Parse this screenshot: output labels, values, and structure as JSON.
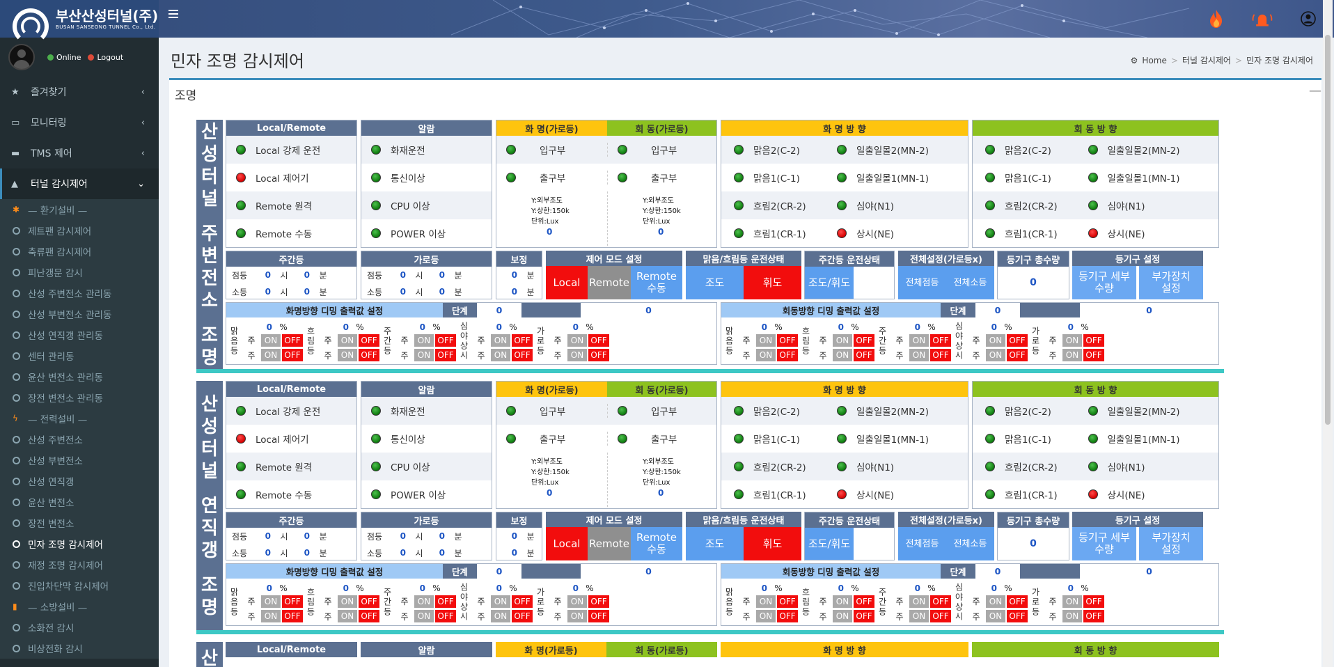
{
  "app": {
    "logo_title": "부산산성터널(주)",
    "logo_sub": "BUSAN SANSEONG TUNNEL Co., Ltd.",
    "online": "Online",
    "logout": "Logout"
  },
  "colors": {
    "online": "#4cae4c",
    "logout": "#dd4b39",
    "accent": "#3c8dbc"
  },
  "menu": [
    {
      "label": "즐겨찾기",
      "icon": "star-icon"
    },
    {
      "label": "모니터링",
      "icon": "monitor-icon"
    },
    {
      "label": "TMS 제어",
      "icon": "car-icon"
    },
    {
      "label": "터널 감시제어",
      "icon": "road-icon"
    }
  ],
  "submenu": [
    {
      "label": "— 환기설비 —",
      "type": "hdr",
      "icon": "fan-icon"
    },
    {
      "label": "제트팬 감시제어"
    },
    {
      "label": "축류팬 감시제어"
    },
    {
      "label": "피난갱문 감시"
    },
    {
      "label": "산성 주변전소 관리동"
    },
    {
      "label": "산성 부변전소 관리동"
    },
    {
      "label": "산성 연직갱 관리동"
    },
    {
      "label": "센터 관리동"
    },
    {
      "label": "윤산 변전소 관리동"
    },
    {
      "label": "장전 변전소 관리동"
    },
    {
      "label": "— 전력설비 —",
      "type": "hdr",
      "icon": "bolt-icon"
    },
    {
      "label": "산성 주변전소"
    },
    {
      "label": "산성 부변전소"
    },
    {
      "label": "산성 연직갱"
    },
    {
      "label": "윤산 변전소"
    },
    {
      "label": "장전 변전소"
    },
    {
      "label": "민자 조명 감시제어",
      "type": "cur"
    },
    {
      "label": "재정 조명 감시제어"
    },
    {
      "label": "진입차단막 감시제어"
    },
    {
      "label": "— 소방설비 —",
      "type": "hdr",
      "icon": "extinguisher-icon"
    },
    {
      "label": "소화전 감시"
    },
    {
      "label": "비상전화 감시"
    }
  ],
  "page": {
    "title": "민자 조명 감시제어",
    "box_title": "조명"
  },
  "breadcrumb": {
    "home": "Home",
    "mid": "터널 감시제어",
    "current": "민자 조명 감시제어"
  },
  "labels": {
    "local_remote": "Local/Remote",
    "alarm": "알람",
    "hwa_street": "화 명(가로등)",
    "hoe_street": "회 동(가로등)",
    "hwa_dir": "화 명 방 향",
    "hoe_dir": "회 동 방 향",
    "lr_items": [
      "Local 강제 운전",
      "Local 제어기",
      "Remote 원격",
      "Remote 수동"
    ],
    "alarm_items": [
      "화재운전",
      "통신이상",
      "CPU 이상",
      "POWER 이상"
    ],
    "entrance": "입구부",
    "exit": "출구부",
    "lux_lines": [
      "Y:외부조도",
      "Y:상한:150k",
      "단위:Lux"
    ],
    "dir_left": [
      "맑음2(C-2)",
      "맑음1(C-1)",
      "흐림2(CR-2)",
      "흐림1(CR-1)"
    ],
    "dir_right": [
      "일출일몰2(MN-2)",
      "일출일몰1(MN-1)",
      "심야(N1)",
      "상시(NE)"
    ],
    "daytime": "주간등",
    "street": "가로등",
    "corr": "보정",
    "on_time": "점등",
    "off_time": "소등",
    "hour": "시",
    "minute": "분",
    "ctrl_mode": "제어 모드 설정",
    "local_btn": "Local",
    "remote_btn": "Remote",
    "remote_manual_btn": "Remote 수동",
    "clear_cloud_state": "맑음/흐림등 운전상태",
    "jodo": "조도",
    "hwido": "휘도",
    "daytime_state": "주간등 운전상태",
    "jodo_hwido": "조도/휘도",
    "all_set": "전체설정(가로등x)",
    "all_on": "전체점등",
    "all_off": "전체소등",
    "fixture_total": "등기구 총수량",
    "fixture_set": "등기구 설정",
    "fixture_detail": "등기구 세부수량",
    "aux_set": "부가장치 설정",
    "hwa_dimming": "화명방향 디밍 출력값 설정",
    "hoe_dimming": "회동방향 디밍 출력값 설정",
    "step": "단계",
    "pct": "%",
    "day": "주",
    "night": "주",
    "on": "ON",
    "off": "OFF",
    "dim_groups": [
      "맑음등",
      "흐림등",
      "주간등",
      "심야상시",
      "가로등"
    ]
  },
  "panels": [
    {
      "title_top": "산성터널",
      "title_mid": "주변전소",
      "title_bot": "조명",
      "lr_status": [
        "green",
        "red",
        "green",
        "green"
      ],
      "alarm_status": [
        "green",
        "green",
        "green",
        "green"
      ],
      "hwa_lux": "0",
      "hoe_lux": "0",
      "dir_left_status": [
        "green",
        "green",
        "green",
        "green"
      ],
      "dir_right_status": [
        "green",
        "green",
        "green",
        "red"
      ],
      "day_on_h": "0",
      "day_on_m": "0",
      "day_off_h": "0",
      "day_off_m": "0",
      "st_on_h": "0",
      "st_on_m": "0",
      "st_off_h": "0",
      "st_off_m": "0",
      "corr_on": "0",
      "corr_off": "0",
      "fixture_total": "0",
      "hwa_step": "0",
      "hwa_step2": "0",
      "hoe_step": "0",
      "hoe_step2": "0",
      "dim_values": [
        "0",
        "0",
        "0",
        "0",
        "0"
      ]
    },
    {
      "title_top": "산성터널",
      "title_mid": "연직갱",
      "title_bot": "조명",
      "lr_status": [
        "green",
        "red",
        "green",
        "green"
      ],
      "alarm_status": [
        "green",
        "green",
        "green",
        "green"
      ],
      "hwa_lux": "0",
      "hoe_lux": "0",
      "dir_left_status": [
        "green",
        "green",
        "green",
        "green"
      ],
      "dir_right_status": [
        "green",
        "green",
        "green",
        "red"
      ],
      "day_on_h": "0",
      "day_on_m": "0",
      "day_off_h": "0",
      "day_off_m": "0",
      "st_on_h": "0",
      "st_on_m": "0",
      "st_off_h": "0",
      "st_off_m": "0",
      "corr_on": "0",
      "corr_off": "0",
      "fixture_total": "0",
      "hwa_step": "0",
      "hwa_step2": "0",
      "hoe_step": "0",
      "hoe_step2": "0",
      "dim_values": [
        "0",
        "0",
        "0",
        "0",
        "0"
      ]
    }
  ],
  "panel3": {
    "title_top": "산"
  }
}
